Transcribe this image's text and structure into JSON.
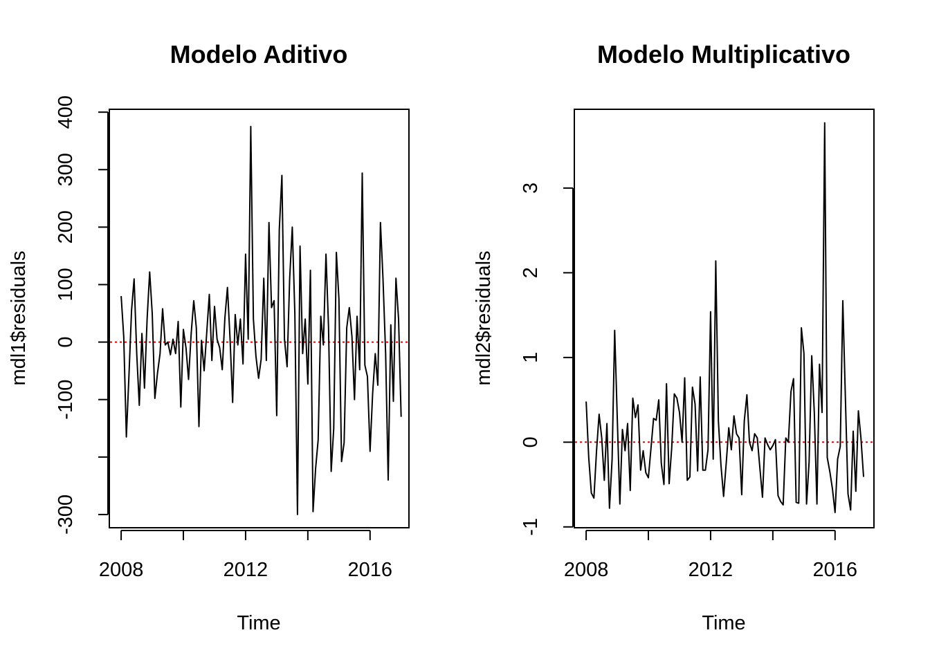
{
  "chart_data": [
    {
      "type": "line",
      "title": "Modelo Aditivo",
      "xlabel": "Time",
      "ylabel": "mdl1$residuals",
      "xlim": [
        2007.62,
        2017.25
      ],
      "ylim": [
        -323,
        405
      ],
      "xticks": [
        2008,
        2010,
        2012,
        2014,
        2016
      ],
      "xtick_labels": [
        "2008",
        "",
        "2012",
        "",
        "2016"
      ],
      "yticks": [
        -300,
        -200,
        -100,
        0,
        100,
        200,
        300,
        400
      ],
      "ytick_labels": [
        "-300",
        "",
        "-100",
        "0",
        "100",
        "200",
        "300",
        "400"
      ],
      "reference_line": {
        "y": 0,
        "color": "#e00000",
        "style": "dotted"
      },
      "line_color": "#000000",
      "series": [
        {
          "x_start": 2008.0,
          "x_step": 0.08333,
          "values": [
            80,
            10,
            -165,
            -60,
            55,
            110,
            -20,
            -110,
            15,
            -80,
            40,
            122,
            50,
            -98,
            -55,
            -20,
            58,
            -5,
            0,
            -22,
            5,
            -20,
            36,
            -113,
            22,
            -10,
            -65,
            15,
            72,
            25,
            -147,
            3,
            -50,
            15,
            83,
            -32,
            62,
            5,
            -10,
            -48,
            42,
            95,
            5,
            -105,
            48,
            -5,
            40,
            -38,
            153,
            5,
            375,
            40,
            -25,
            -63,
            -30,
            111,
            -32,
            208,
            60,
            72,
            -128,
            195,
            290,
            5,
            -43,
            110,
            200,
            50,
            -300,
            167,
            -20,
            40,
            -73,
            125,
            -295,
            -220,
            -170,
            45,
            -5,
            153,
            25,
            -225,
            -150,
            156,
            75,
            -208,
            -175,
            25,
            60,
            10,
            -100,
            45,
            -48,
            294,
            -40,
            -60,
            -190,
            -90,
            -20,
            -75,
            208,
            110,
            -20,
            -240,
            30,
            -103,
            111,
            40,
            -130
          ]
        }
      ]
    },
    {
      "type": "line",
      "title": "Modelo Multiplicativo",
      "xlabel": "Time",
      "ylabel": "mdl2$residuals",
      "xlim": [
        2007.62,
        2017.25
      ],
      "ylim": [
        -1.01,
        3.93
      ],
      "xticks": [
        2008,
        2010,
        2012,
        2014,
        2016
      ],
      "xtick_labels": [
        "2008",
        "",
        "2012",
        "",
        "2016"
      ],
      "yticks": [
        -1,
        0,
        1,
        2,
        3
      ],
      "ytick_labels": [
        "-1",
        "0",
        "1",
        "2",
        "3"
      ],
      "reference_line": {
        "y": 0,
        "color": "#e00000",
        "style": "dotted"
      },
      "line_color": "#000000",
      "series": [
        {
          "x_start": 2008.0,
          "x_step": 0.08333,
          "values": [
            0.48,
            -0.18,
            -0.6,
            -0.66,
            -0.1,
            0.33,
            0.05,
            -0.45,
            0.22,
            -0.78,
            -0.2,
            1.32,
            0.3,
            -0.73,
            0.15,
            -0.1,
            0.22,
            -0.57,
            0.52,
            0.29,
            0.44,
            -0.33,
            -0.1,
            -0.36,
            -0.42,
            -0.07,
            0.28,
            0.26,
            0.5,
            -0.25,
            -0.5,
            0.69,
            -0.49,
            -0.07,
            0.57,
            0.52,
            0.35,
            0.0,
            0.76,
            -0.45,
            -0.41,
            0.65,
            0.45,
            -0.34,
            0.77,
            -0.33,
            -0.33,
            -0.09,
            1.54,
            -0.2,
            2.14,
            0.25,
            -0.27,
            -0.64,
            -0.26,
            0.17,
            -0.09,
            0.31,
            0.1,
            0.05,
            -0.62,
            0.25,
            0.56,
            0.0,
            -0.1,
            0.1,
            0.05,
            -0.3,
            -0.65,
            0.05,
            -0.03,
            -0.09,
            -0.04,
            0.03,
            -0.63,
            -0.7,
            -0.74,
            0.05,
            0.0,
            0.6,
            0.75,
            -0.71,
            -0.72,
            1.35,
            1.05,
            -0.73,
            -0.23,
            1.02,
            0.35,
            -0.73,
            0.92,
            0.35,
            3.77,
            -0.18,
            -0.35,
            -0.55,
            -0.83,
            -0.2,
            -0.05,
            1.67,
            0.5,
            -0.61,
            -0.8,
            0.13,
            -0.58,
            0.37,
            0.05,
            -0.41
          ]
        }
      ]
    }
  ]
}
